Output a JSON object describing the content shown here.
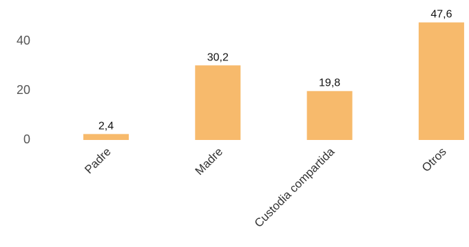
{
  "chart_data": {
    "type": "bar",
    "title": "",
    "xlabel": "",
    "ylabel": "",
    "categories": [
      "Padre",
      "Madre",
      "Custodia compartida",
      "Otros"
    ],
    "values": [
      2.4,
      30.2,
      19.8,
      47.6
    ],
    "value_labels": [
      "2,4",
      "30,2",
      "19,8",
      "47,6"
    ],
    "yticks": [
      0,
      20,
      40
    ],
    "ytick_labels": [
      "0",
      "20",
      "40"
    ],
    "ylim": [
      0,
      48
    ],
    "grid": false,
    "legend": "none",
    "colors": {
      "bar": "#F7BA6C"
    }
  }
}
